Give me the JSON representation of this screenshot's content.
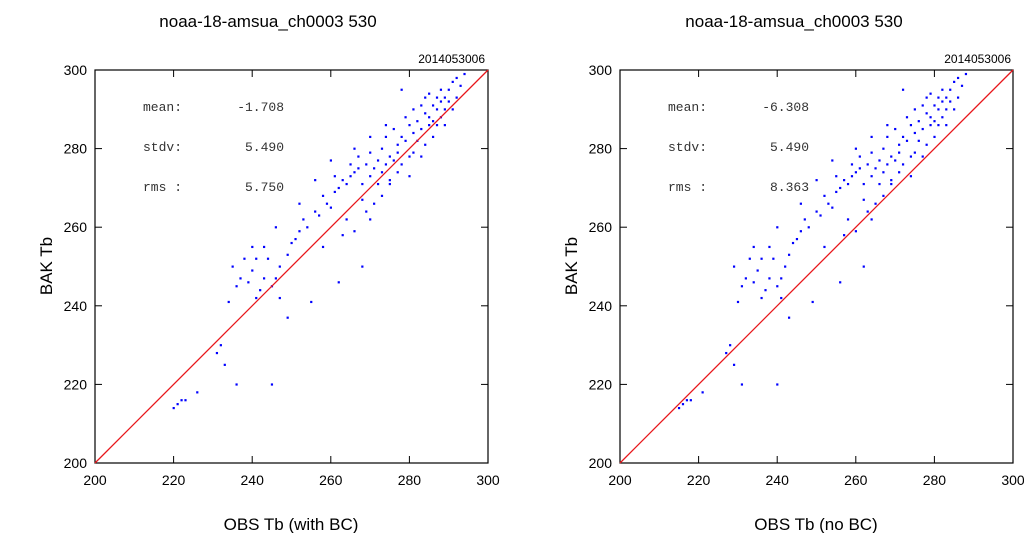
{
  "chart_data": [
    {
      "type": "scatter",
      "title": "noaa-18-amsua_ch0003    530",
      "date_label": "2014053006",
      "xlabel": "OBS Tb (with BC)",
      "ylabel": "BAK Tb",
      "xlim": [
        200,
        300
      ],
      "ylim": [
        200,
        300
      ],
      "xticks": [
        "200",
        "220",
        "240",
        "260",
        "280",
        "300"
      ],
      "yticks": [
        "200",
        "220",
        "240",
        "260",
        "280",
        "300"
      ],
      "stats": [
        {
          "label": "mean:",
          "value": "-1.708"
        },
        {
          "label": "stdv:",
          "value": "5.490"
        },
        {
          "label": "rms :",
          "value": "5.750"
        }
      ],
      "point_color": "#0000ff",
      "line_color": "#e8161b",
      "reference_line": {
        "from": [
          200,
          200
        ],
        "to": [
          300,
          300
        ]
      },
      "points": [
        [
          220,
          214
        ],
        [
          221,
          215
        ],
        [
          222,
          216
        ],
        [
          223,
          216
        ],
        [
          226,
          218
        ],
        [
          231,
          228
        ],
        [
          232,
          230
        ],
        [
          233,
          225
        ],
        [
          234,
          241
        ],
        [
          236,
          220
        ],
        [
          236,
          245
        ],
        [
          237,
          247
        ],
        [
          238,
          252
        ],
        [
          239,
          246
        ],
        [
          240,
          249
        ],
        [
          241,
          242
        ],
        [
          241,
          252
        ],
        [
          242,
          244
        ],
        [
          243,
          255
        ],
        [
          243,
          247
        ],
        [
          244,
          252
        ],
        [
          245,
          220
        ],
        [
          245,
          245
        ],
        [
          246,
          247
        ],
        [
          247,
          242
        ],
        [
          247,
          250
        ],
        [
          249,
          237
        ],
        [
          249,
          253
        ],
        [
          250,
          256
        ],
        [
          251,
          257
        ],
        [
          252,
          259
        ],
        [
          253,
          262
        ],
        [
          254,
          260
        ],
        [
          255,
          241
        ],
        [
          256,
          264
        ],
        [
          257,
          263
        ],
        [
          258,
          255
        ],
        [
          258,
          268
        ],
        [
          259,
          266
        ],
        [
          260,
          265
        ],
        [
          261,
          269
        ],
        [
          261,
          273
        ],
        [
          262,
          246
        ],
        [
          262,
          270
        ],
        [
          263,
          258
        ],
        [
          263,
          272
        ],
        [
          264,
          271
        ],
        [
          264,
          262
        ],
        [
          265,
          273
        ],
        [
          265,
          276
        ],
        [
          266,
          259
        ],
        [
          266,
          274
        ],
        [
          267,
          275
        ],
        [
          267,
          278
        ],
        [
          268,
          271
        ],
        [
          268,
          250
        ],
        [
          268,
          267
        ],
        [
          269,
          276
        ],
        [
          269,
          264
        ],
        [
          270,
          262
        ],
        [
          270,
          273
        ],
        [
          270,
          279
        ],
        [
          271,
          266
        ],
        [
          271,
          275
        ],
        [
          272,
          277
        ],
        [
          272,
          271
        ],
        [
          273,
          274
        ],
        [
          273,
          280
        ],
        [
          273,
          268
        ],
        [
          274,
          276
        ],
        [
          274,
          283
        ],
        [
          275,
          271
        ],
        [
          275,
          278
        ],
        [
          275,
          272
        ],
        [
          276,
          285
        ],
        [
          276,
          277
        ],
        [
          277,
          274
        ],
        [
          277,
          281
        ],
        [
          277,
          279
        ],
        [
          278,
          283
        ],
        [
          278,
          276
        ],
        [
          279,
          288
        ],
        [
          279,
          282
        ],
        [
          280,
          278
        ],
        [
          280,
          286
        ],
        [
          280,
          273
        ],
        [
          281,
          284
        ],
        [
          281,
          290
        ],
        [
          281,
          279
        ],
        [
          282,
          287
        ],
        [
          282,
          282
        ],
        [
          283,
          291
        ],
        [
          283,
          278
        ],
        [
          283,
          285
        ],
        [
          284,
          289
        ],
        [
          284,
          293
        ],
        [
          284,
          281
        ],
        [
          285,
          288
        ],
        [
          285,
          286
        ],
        [
          285,
          294
        ],
        [
          286,
          291
        ],
        [
          286,
          287
        ],
        [
          286,
          283
        ],
        [
          287,
          290
        ],
        [
          287,
          293
        ],
        [
          287,
          286
        ],
        [
          288,
          292
        ],
        [
          288,
          288
        ],
        [
          288,
          295
        ],
        [
          289,
          290
        ],
        [
          289,
          293
        ],
        [
          289,
          286
        ],
        [
          290,
          292
        ],
        [
          290,
          295
        ],
        [
          291,
          297
        ],
        [
          291,
          290
        ],
        [
          292,
          298
        ],
        [
          292,
          293
        ],
        [
          293,
          296
        ],
        [
          294,
          299
        ],
        [
          278,
          295
        ],
        [
          274,
          286
        ],
        [
          270,
          283
        ],
        [
          266,
          280
        ],
        [
          260,
          277
        ],
        [
          256,
          272
        ],
        [
          252,
          266
        ],
        [
          246,
          260
        ],
        [
          240,
          255
        ],
        [
          235,
          250
        ]
      ]
    },
    {
      "type": "scatter",
      "title": "noaa-18-amsua_ch0003    530",
      "date_label": "2014053006",
      "xlabel": "OBS Tb (no BC)",
      "ylabel": "BAK Tb",
      "xlim": [
        200,
        300
      ],
      "ylim": [
        200,
        300
      ],
      "xticks": [
        "200",
        "220",
        "240",
        "260",
        "280",
        "300"
      ],
      "yticks": [
        "200",
        "220",
        "240",
        "260",
        "280",
        "300"
      ],
      "stats": [
        {
          "label": "mean:",
          "value": "-6.308"
        },
        {
          "label": "stdv:",
          "value": "5.490"
        },
        {
          "label": "rms :",
          "value": "8.363"
        }
      ],
      "point_color": "#0000ff",
      "line_color": "#e8161b",
      "reference_line": {
        "from": [
          200,
          200
        ],
        "to": [
          300,
          300
        ]
      },
      "points": [
        [
          215,
          214
        ],
        [
          216,
          215
        ],
        [
          217,
          216
        ],
        [
          218,
          216
        ],
        [
          221,
          218
        ],
        [
          227,
          228
        ],
        [
          228,
          230
        ],
        [
          229,
          225
        ],
        [
          230,
          241
        ],
        [
          231,
          220
        ],
        [
          231,
          245
        ],
        [
          232,
          247
        ],
        [
          233,
          252
        ],
        [
          234,
          246
        ],
        [
          235,
          249
        ],
        [
          236,
          242
        ],
        [
          236,
          252
        ],
        [
          237,
          244
        ],
        [
          238,
          255
        ],
        [
          238,
          247
        ],
        [
          239,
          252
        ],
        [
          240,
          220
        ],
        [
          240,
          245
        ],
        [
          241,
          247
        ],
        [
          241,
          242
        ],
        [
          242,
          250
        ],
        [
          243,
          237
        ],
        [
          243,
          253
        ],
        [
          244,
          256
        ],
        [
          245,
          257
        ],
        [
          246,
          259
        ],
        [
          247,
          262
        ],
        [
          248,
          260
        ],
        [
          249,
          241
        ],
        [
          250,
          264
        ],
        [
          251,
          263
        ],
        [
          252,
          255
        ],
        [
          252,
          268
        ],
        [
          253,
          266
        ],
        [
          254,
          265
        ],
        [
          255,
          269
        ],
        [
          255,
          273
        ],
        [
          256,
          246
        ],
        [
          256,
          270
        ],
        [
          257,
          258
        ],
        [
          257,
          272
        ],
        [
          258,
          271
        ],
        [
          258,
          262
        ],
        [
          259,
          273
        ],
        [
          259,
          276
        ],
        [
          260,
          259
        ],
        [
          260,
          274
        ],
        [
          261,
          275
        ],
        [
          261,
          278
        ],
        [
          262,
          271
        ],
        [
          262,
          250
        ],
        [
          262,
          267
        ],
        [
          263,
          276
        ],
        [
          263,
          264
        ],
        [
          264,
          262
        ],
        [
          264,
          273
        ],
        [
          264,
          279
        ],
        [
          265,
          266
        ],
        [
          265,
          275
        ],
        [
          266,
          277
        ],
        [
          266,
          271
        ],
        [
          267,
          274
        ],
        [
          267,
          280
        ],
        [
          267,
          268
        ],
        [
          268,
          276
        ],
        [
          268,
          283
        ],
        [
          269,
          271
        ],
        [
          269,
          278
        ],
        [
          269,
          272
        ],
        [
          270,
          285
        ],
        [
          270,
          277
        ],
        [
          271,
          274
        ],
        [
          271,
          281
        ],
        [
          271,
          279
        ],
        [
          272,
          283
        ],
        [
          272,
          276
        ],
        [
          273,
          288
        ],
        [
          273,
          282
        ],
        [
          274,
          278
        ],
        [
          274,
          286
        ],
        [
          274,
          273
        ],
        [
          275,
          284
        ],
        [
          275,
          290
        ],
        [
          275,
          279
        ],
        [
          276,
          287
        ],
        [
          276,
          282
        ],
        [
          277,
          291
        ],
        [
          277,
          278
        ],
        [
          277,
          285
        ],
        [
          278,
          289
        ],
        [
          278,
          293
        ],
        [
          278,
          281
        ],
        [
          279,
          288
        ],
        [
          279,
          286
        ],
        [
          279,
          294
        ],
        [
          280,
          291
        ],
        [
          280,
          287
        ],
        [
          280,
          283
        ],
        [
          281,
          290
        ],
        [
          281,
          293
        ],
        [
          281,
          286
        ],
        [
          282,
          292
        ],
        [
          282,
          288
        ],
        [
          282,
          295
        ],
        [
          283,
          290
        ],
        [
          283,
          293
        ],
        [
          283,
          286
        ],
        [
          284,
          292
        ],
        [
          284,
          295
        ],
        [
          285,
          297
        ],
        [
          285,
          290
        ],
        [
          286,
          298
        ],
        [
          286,
          293
        ],
        [
          287,
          296
        ],
        [
          288,
          299
        ],
        [
          272,
          295
        ],
        [
          268,
          286
        ],
        [
          264,
          283
        ],
        [
          260,
          280
        ],
        [
          254,
          277
        ],
        [
          250,
          272
        ],
        [
          246,
          266
        ],
        [
          240,
          260
        ],
        [
          234,
          255
        ],
        [
          229,
          250
        ]
      ]
    }
  ]
}
